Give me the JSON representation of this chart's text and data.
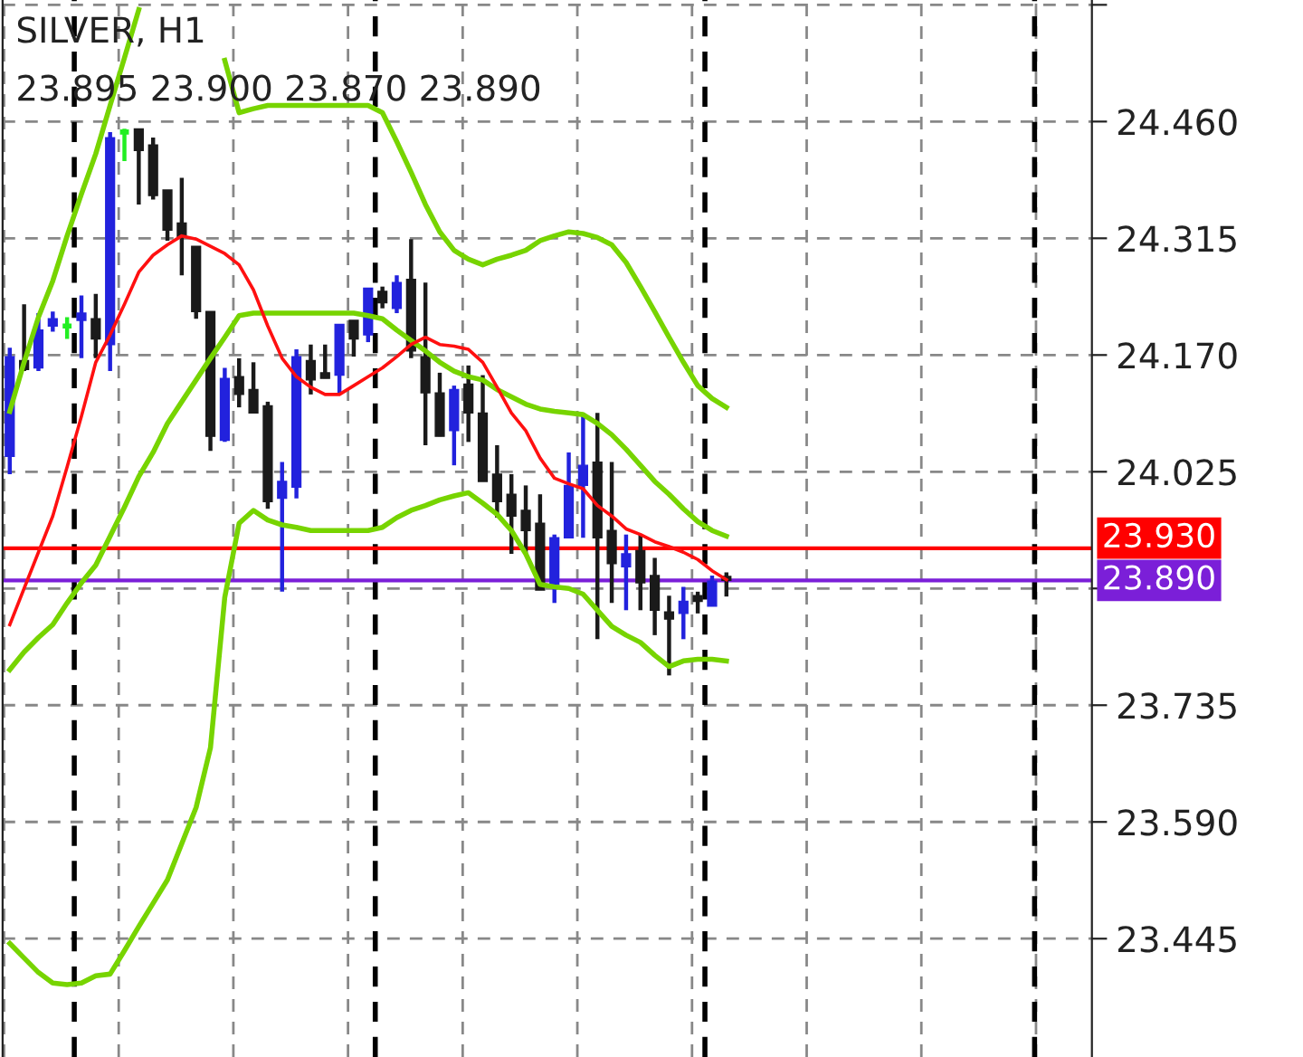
{
  "chart_data": {
    "type": "candlestick",
    "title": "SILVER, H1",
    "subtitle": "23.895 23.900 23.870 23.890",
    "categories": [
      null,
      null,
      null,
      null,
      null,
      null,
      null,
      null,
      null,
      null,
      null,
      null,
      null,
      null,
      null,
      null,
      null,
      null,
      null,
      null,
      null,
      null,
      null,
      null,
      null,
      null,
      null,
      null,
      null,
      null,
      null,
      null,
      null,
      null,
      null,
      null,
      null,
      null,
      null,
      null,
      null,
      null,
      null,
      null,
      null,
      null,
      null,
      null,
      null,
      null,
      null,
      null,
      null,
      null,
      null,
      null,
      null,
      null,
      null,
      null,
      null,
      null,
      null,
      null,
      null,
      null,
      null,
      null,
      null,
      null,
      null,
      null,
      null,
      null,
      null,
      null
    ],
    "ohlc": [
      [
        24.044,
        24.179,
        24.022,
        24.168
      ],
      [
        24.163,
        24.233,
        24.15,
        24.152
      ],
      [
        24.154,
        24.222,
        24.15,
        24.201
      ],
      [
        24.206,
        24.224,
        24.199,
        24.215
      ],
      [
        24.206,
        24.217,
        24.19,
        24.206
      ],
      [
        24.213,
        24.244,
        24.166,
        24.222
      ],
      [
        24.215,
        24.246,
        24.166,
        24.19
      ],
      [
        24.183,
        24.447,
        24.15,
        24.44
      ],
      [
        24.447,
        24.451,
        24.411,
        24.447
      ],
      [
        24.451,
        24.451,
        24.357,
        24.424
      ],
      [
        24.431,
        24.44,
        24.363,
        24.368
      ],
      [
        24.375,
        24.375,
        24.312,
        24.325
      ],
      [
        24.334,
        24.39,
        24.269,
        24.316
      ],
      [
        24.305,
        24.305,
        24.215,
        24.224
      ],
      [
        24.224,
        24.224,
        24.051,
        24.069
      ],
      [
        24.064,
        24.154,
        24.062,
        24.141
      ],
      [
        24.143,
        24.166,
        24.105,
        24.121
      ],
      [
        24.127,
        24.161,
        24.098,
        24.098
      ],
      [
        24.107,
        24.112,
        23.979,
        23.988
      ],
      [
        23.992,
        24.037,
        23.876,
        24.013
      ],
      [
        24.006,
        24.177,
        23.992,
        24.168
      ],
      [
        24.163,
        24.183,
        24.121,
        24.139
      ],
      [
        24.148,
        24.183,
        24.141,
        24.141
      ],
      [
        24.145,
        24.208,
        24.121,
        24.208
      ],
      [
        24.213,
        24.213,
        24.168,
        24.19
      ],
      [
        24.195,
        24.253,
        24.186,
        24.253
      ],
      [
        24.249,
        24.255,
        24.228,
        24.235
      ],
      [
        24.228,
        24.269,
        24.222,
        24.26
      ],
      [
        24.264,
        24.314,
        24.166,
        24.175
      ],
      [
        24.168,
        24.26,
        24.058,
        24.123
      ],
      [
        24.123,
        24.148,
        24.069,
        24.069
      ],
      [
        24.076,
        24.132,
        24.033,
        24.127
      ],
      [
        24.134,
        24.157,
        24.062,
        24.098
      ],
      [
        24.098,
        24.145,
        24.013,
        24.013
      ],
      [
        24.022,
        24.058,
        23.968,
        23.988
      ],
      [
        23.997,
        24.022,
        23.923,
        23.97
      ],
      [
        23.977,
        24.008,
        23.923,
        23.952
      ],
      [
        23.961,
        23.997,
        23.878,
        23.878
      ],
      [
        23.885,
        23.947,
        23.862,
        23.943
      ],
      [
        23.943,
        24.049,
        23.943,
        24.008
      ],
      [
        24.008,
        24.098,
        23.943,
        24.033
      ],
      [
        24.037,
        24.098,
        23.817,
        23.943
      ],
      [
        23.952,
        24.037,
        23.862,
        23.911
      ],
      [
        23.907,
        23.947,
        23.853,
        23.923
      ],
      [
        23.927,
        23.947,
        23.853,
        23.887
      ],
      [
        23.896,
        23.918,
        23.822,
        23.853
      ],
      [
        23.851,
        23.871,
        23.772,
        23.842
      ],
      [
        23.849,
        23.882,
        23.817,
        23.864
      ],
      [
        23.871,
        23.876,
        23.849,
        23.864
      ],
      [
        23.858,
        23.896,
        23.858,
        23.889
      ],
      [
        23.895,
        23.9,
        23.87,
        23.89
      ],
      null,
      null,
      null,
      null,
      null,
      null,
      null,
      null,
      null,
      null,
      null,
      null,
      null,
      null,
      null,
      null,
      null,
      null,
      null,
      null,
      null,
      null,
      null,
      null,
      null
    ],
    "colors": [
      "#2222dd",
      "#1a1a1a",
      "#2222dd",
      "#2222dd",
      "#22ee22",
      "#2222dd",
      "#1a1a1a",
      "#2222dd",
      "#22ee22",
      "#1a1a1a",
      "#1a1a1a",
      "#1a1a1a",
      "#1a1a1a",
      "#1a1a1a",
      "#1a1a1a",
      "#2222dd",
      "#1a1a1a",
      "#1a1a1a",
      "#1a1a1a",
      "#2222dd",
      "#2222dd",
      "#1a1a1a",
      "#1a1a1a",
      "#2222dd",
      "#1a1a1a",
      "#2222dd",
      "#1a1a1a",
      "#2222dd",
      "#1a1a1a",
      "#1a1a1a",
      "#1a1a1a",
      "#2222dd",
      "#1a1a1a",
      "#1a1a1a",
      "#1a1a1a",
      "#1a1a1a",
      "#1a1a1a",
      "#1a1a1a",
      "#2222dd",
      "#2222dd",
      "#2222dd",
      "#1a1a1a",
      "#1a1a1a",
      "#2222dd",
      "#1a1a1a",
      "#1a1a1a",
      "#1a1a1a",
      "#2222dd",
      "#1a1a1a",
      "#2222dd",
      "#1a1a1a",
      null,
      null,
      null,
      null,
      null,
      null,
      null,
      null,
      null,
      null,
      null,
      null,
      null,
      null,
      null,
      null,
      null,
      null,
      null,
      null,
      null,
      null,
      null,
      null,
      null
    ],
    "series": [
      {
        "type": "line",
        "color": "#77d400",
        "values": [
          24.1,
          24.161,
          24.217,
          24.262,
          24.318,
          24.37,
          24.42,
          24.48,
          24.539,
          24.599,
          null,
          null,
          null,
          null,
          null,
          24.536,
          24.471,
          24.476,
          24.48,
          24.48,
          24.48,
          24.48,
          24.48,
          24.48,
          24.48,
          24.48,
          24.471,
          24.435,
          24.397,
          24.357,
          24.323,
          24.3,
          24.289,
          24.282,
          24.289,
          24.294,
          24.3,
          24.312,
          24.318,
          24.323,
          24.321,
          24.316,
          24.307,
          24.285,
          24.255,
          24.224,
          24.192,
          24.161,
          24.132,
          24.116,
          24.105,
          null,
          null,
          null,
          null,
          null,
          null,
          null,
          null,
          null,
          null,
          null,
          null,
          null,
          null,
          null,
          null,
          null,
          null,
          null,
          null,
          null,
          null,
          null,
          null,
          null
        ]
      },
      {
        "type": "line",
        "color": "#77d400",
        "values": [
          23.779,
          23.801,
          23.819,
          23.835,
          23.862,
          23.887,
          23.909,
          23.945,
          23.981,
          24.019,
          24.049,
          24.085,
          24.112,
          24.139,
          24.166,
          24.192,
          24.219,
          24.222,
          24.222,
          24.222,
          24.222,
          24.222,
          24.222,
          24.222,
          24.222,
          24.219,
          24.215,
          24.201,
          24.188,
          24.175,
          24.161,
          24.15,
          24.143,
          24.139,
          24.127,
          24.118,
          24.109,
          24.103,
          24.1,
          24.098,
          24.096,
          24.085,
          24.071,
          24.053,
          24.033,
          24.013,
          23.997,
          23.979,
          23.963,
          23.952,
          23.945,
          null,
          null,
          null,
          null,
          null,
          null,
          null,
          null,
          null,
          null,
          null,
          null,
          null,
          null,
          null,
          null,
          null,
          null,
          null,
          null,
          null,
          null,
          null,
          null,
          null
        ]
      },
      {
        "type": "line",
        "color": "#77d400",
        "values": [
          23.439,
          23.421,
          23.403,
          23.39,
          23.388,
          23.39,
          23.399,
          23.401,
          23.43,
          23.46,
          23.489,
          23.518,
          23.563,
          23.608,
          23.682,
          23.869,
          23.961,
          23.977,
          23.965,
          23.959,
          23.956,
          23.952,
          23.952,
          23.952,
          23.952,
          23.952,
          23.956,
          23.968,
          23.977,
          23.983,
          23.99,
          23.995,
          23.999,
          23.986,
          23.972,
          23.952,
          23.923,
          23.885,
          23.882,
          23.88,
          23.873,
          23.853,
          23.833,
          23.822,
          23.813,
          23.797,
          23.783,
          23.79,
          23.792,
          23.792,
          23.79,
          null,
          null,
          null,
          null,
          null,
          null,
          null,
          null,
          null,
          null,
          null,
          null,
          null,
          null,
          null,
          null,
          null,
          null,
          null,
          null,
          null,
          null,
          null,
          null,
          null
        ]
      },
      {
        "type": "line",
        "color": "#ff1010",
        "values": [
          23.835,
          23.88,
          23.925,
          23.97,
          24.031,
          24.094,
          24.161,
          24.195,
          24.233,
          24.273,
          24.294,
          24.307,
          24.318,
          24.314,
          24.305,
          24.296,
          24.282,
          24.251,
          24.206,
          24.166,
          24.143,
          24.13,
          24.121,
          24.121,
          24.132,
          24.143,
          24.154,
          24.168,
          24.183,
          24.192,
          24.183,
          24.181,
          24.177,
          24.161,
          24.13,
          24.098,
          24.076,
          24.042,
          24.017,
          24.01,
          24.004,
          23.983,
          23.97,
          23.954,
          23.947,
          23.938,
          23.932,
          23.925,
          23.916,
          23.902,
          23.891,
          null,
          null,
          null,
          null,
          null,
          null,
          null,
          null,
          null,
          null,
          null,
          null,
          null,
          null,
          null,
          null,
          null,
          null,
          null,
          null,
          null,
          null,
          null,
          null,
          null
        ]
      }
    ],
    "ylim": [
      23.298,
      24.611
    ],
    "yticks": [
      {
        "value": 23.445,
        "label": "23.445"
      },
      {
        "value": 23.59,
        "label": "23.590"
      },
      {
        "value": 23.735,
        "label": "23.735"
      },
      {
        "value": 23.88,
        "label": null
      },
      {
        "value": 24.025,
        "label": "24.025"
      },
      {
        "value": 24.17,
        "label": "24.170"
      },
      {
        "value": 24.315,
        "label": "24.315"
      },
      {
        "value": 24.46,
        "label": "24.460"
      },
      {
        "value": 24.605,
        "label": null
      }
    ],
    "ref_lines": [
      {
        "axis": "y",
        "value": 23.93,
        "label": "23.930",
        "color": "#ff0000",
        "line_style": "solid"
      },
      {
        "axis": "y",
        "value": 23.89,
        "label": "23.890",
        "color": "#7b1fd8",
        "line_style": "solid"
      }
    ],
    "grid": true
  }
}
